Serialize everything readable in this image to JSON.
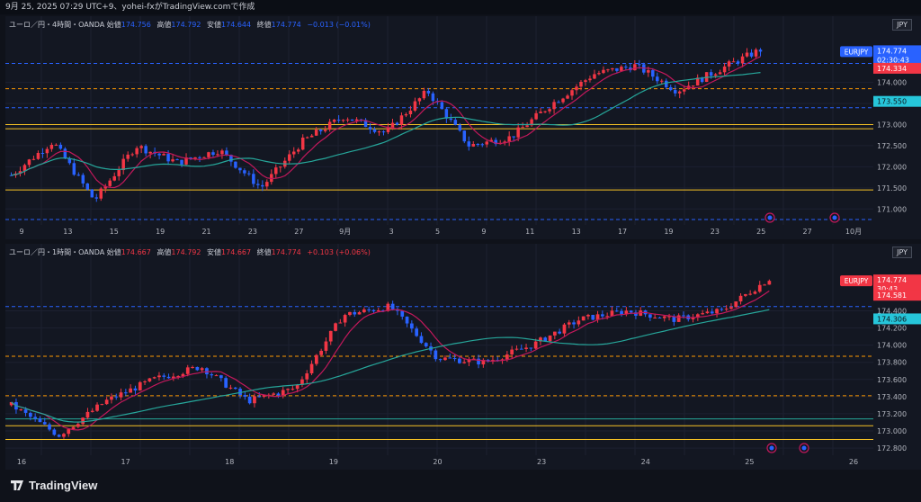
{
  "header": {
    "text": "9月 25, 2025 07:29 UTC+9、yohei-fxがTradingView.comで作成"
  },
  "brand": {
    "name": "TradingView"
  },
  "colors": {
    "up": "#f23645",
    "down": "#2962ff",
    "ma_fast": "#c2185b",
    "ma_slow": "#26a69a",
    "hline_yellow": "#f7c325",
    "hline_orange_dash": "#ff9800",
    "hline_blue_dash": "#2962ff",
    "bg": "#131722"
  },
  "panes": [
    {
      "id": "4h",
      "legend": {
        "title": "ユーロ／円・4時間・OANDA",
        "open_label": "始値",
        "open": "174.756",
        "high_label": "高値",
        "high": "174.792",
        "low_label": "安値",
        "low": "174.644",
        "close_label": "終値",
        "close": "174.774",
        "change": "−0.013 (−0.01%)"
      },
      "currency": "JPY",
      "symbol_badge": "EURJPY",
      "price_tag": "174.774",
      "countdown": "02:30:43",
      "tags": [
        "174.334",
        "173.550"
      ],
      "yticks": [
        "174.000",
        "173.500",
        "173.000",
        "172.500",
        "172.000",
        "171.500",
        "171.000"
      ],
      "xticks": [
        "9",
        "13",
        "15",
        "19",
        "21",
        "23",
        "27",
        "9月",
        "3",
        "5",
        "9",
        "11",
        "13",
        "17",
        "19",
        "23",
        "25",
        "27",
        "10月"
      ]
    },
    {
      "id": "1h",
      "legend": {
        "title": "ユーロ／円・1時間・OANDA",
        "open_label": "始値",
        "open": "174.667",
        "high_label": "高値",
        "high": "174.792",
        "low_label": "安値",
        "low": "174.667",
        "close_label": "終値",
        "close": "174.774",
        "change": "+0.103 (+0.06%)"
      },
      "currency": "JPY",
      "symbol_badge": "EURJPY",
      "price_tag": "174.774",
      "countdown": "30:43",
      "tags": [
        "174.581",
        "174.306"
      ],
      "yticks": [
        "174.400",
        "174.200",
        "174.000",
        "173.800",
        "173.600",
        "173.400",
        "173.200",
        "173.000",
        "172.800"
      ],
      "xticks": [
        "16",
        "17",
        "18",
        "19",
        "20",
        "23",
        "24",
        "25",
        "26"
      ]
    }
  ],
  "chart_data": [
    {
      "type": "candlestick",
      "title": "ユーロ／円・4時間・OANDA",
      "ylim": [
        170.75,
        175.1
      ],
      "price_levels": {
        "yellow": [
          173.0,
          172.9,
          171.45
        ],
        "orange_dashed": [
          173.85
        ],
        "blue_dashed": [
          174.45,
          173.4,
          170.75
        ]
      },
      "ma_fast_end": 174.334,
      "ma_slow_end": 173.55,
      "key_closes": [
        171.8,
        172.6,
        171.2,
        172.5,
        172.1,
        172.4,
        171.5,
        172.6,
        173.2,
        172.8,
        173.8,
        172.5,
        172.7,
        173.5,
        174.2,
        174.4,
        173.8,
        174.3,
        174.774
      ]
    },
    {
      "type": "candlestick",
      "title": "ユーロ／円・1時間・OANDA",
      "ylim": [
        172.78,
        174.95
      ],
      "price_levels": {
        "yellow": [
          173.06,
          172.9
        ],
        "orange_dashed": [
          173.87,
          173.41
        ],
        "blue_dashed": [
          174.45
        ],
        "teal": [
          173.14
        ]
      },
      "ma_fast_end": 174.581,
      "ma_slow_end": 174.306,
      "key_closes": [
        173.3,
        172.95,
        173.35,
        173.6,
        173.75,
        173.35,
        173.5,
        174.35,
        174.45,
        173.85,
        173.8,
        174.0,
        174.3,
        174.4,
        174.3,
        174.4,
        174.774
      ]
    }
  ]
}
